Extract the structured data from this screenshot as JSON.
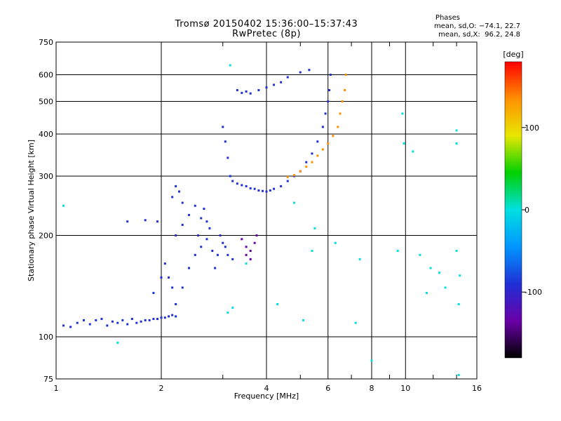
{
  "chart_data": {
    "type": "scatter",
    "title": "Tromsø 20150402 15:36:00–15:37:43",
    "subtitle": "RwPretec (8p)",
    "xlabel": "Frequency [MHz]",
    "ylabel": "Stationary phase Virtual Height [km]",
    "xscale": "log",
    "yscale": "log",
    "xlim": [
      1,
      16
    ],
    "ylim": [
      75,
      750
    ],
    "grid": true,
    "x_ticks": [
      1,
      2,
      4,
      6,
      8,
      10,
      16
    ],
    "y_ticks": [
      75,
      100,
      200,
      300,
      400,
      500,
      600,
      750
    ],
    "stats": {
      "title": "Phases",
      "o_mode": "mean, sd,O: −74.1, 22.7",
      "x_mode": "mean, sd,X:  96.2, 24.8"
    },
    "colorbar": {
      "label": "[deg]",
      "range": [
        -180,
        180
      ],
      "ticks": [
        100,
        0,
        -100
      ],
      "colormap": [
        "#000000",
        "#6a00a8",
        "#1f2fd6",
        "#0096ff",
        "#00e0e0",
        "#00d000",
        "#e8e800",
        "#ff9000",
        "#ff0000"
      ]
    },
    "series": [
      {
        "description": "o-mode trace (low)",
        "points": [
          [
            1.05,
            108
          ],
          [
            1.1,
            107
          ],
          [
            1.15,
            110
          ],
          [
            1.2,
            112
          ],
          [
            1.25,
            109
          ],
          [
            1.3,
            112
          ],
          [
            1.35,
            113
          ],
          [
            1.4,
            108
          ],
          [
            1.45,
            111
          ],
          [
            1.5,
            110
          ],
          [
            1.55,
            112
          ],
          [
            1.6,
            109
          ],
          [
            1.65,
            113
          ],
          [
            1.7,
            110
          ],
          [
            1.75,
            111
          ],
          [
            1.8,
            112
          ],
          [
            1.85,
            112
          ],
          [
            1.9,
            113
          ],
          [
            1.95,
            113
          ],
          [
            2.0,
            114
          ],
          [
            2.05,
            114
          ],
          [
            2.1,
            115
          ],
          [
            2.15,
            116
          ],
          [
            2.2,
            115
          ]
        ],
        "phase": -75
      },
      {
        "description": "E/F1 scatter",
        "points": [
          [
            1.9,
            135
          ],
          [
            2.0,
            150
          ],
          [
            2.05,
            165
          ],
          [
            2.1,
            150
          ],
          [
            2.15,
            140
          ],
          [
            2.2,
            125
          ],
          [
            2.3,
            140
          ],
          [
            2.4,
            160
          ],
          [
            2.5,
            175
          ],
          [
            2.6,
            185
          ],
          [
            2.7,
            195
          ],
          [
            2.75,
            210
          ],
          [
            2.8,
            180
          ],
          [
            2.85,
            160
          ],
          [
            2.9,
            175
          ],
          [
            2.95,
            200
          ],
          [
            3.0,
            190
          ],
          [
            3.05,
            185
          ],
          [
            3.1,
            175
          ],
          [
            3.2,
            170
          ],
          [
            2.55,
            200
          ],
          [
            2.6,
            225
          ],
          [
            2.65,
            240
          ],
          [
            2.7,
            220
          ],
          [
            2.2,
            200
          ],
          [
            2.3,
            215
          ],
          [
            2.4,
            230
          ],
          [
            2.5,
            245
          ],
          [
            2.15,
            260
          ],
          [
            2.2,
            280
          ],
          [
            2.25,
            270
          ],
          [
            2.3,
            250
          ],
          [
            1.95,
            220
          ],
          [
            1.8,
            222
          ],
          [
            1.6,
            220
          ]
        ],
        "phase": -70
      },
      {
        "description": "F2 o-mode trace",
        "points": [
          [
            3.0,
            420
          ],
          [
            3.05,
            380
          ],
          [
            3.1,
            340
          ],
          [
            3.15,
            300
          ],
          [
            3.2,
            290
          ],
          [
            3.3,
            285
          ],
          [
            3.4,
            282
          ],
          [
            3.5,
            280
          ],
          [
            3.6,
            276
          ],
          [
            3.7,
            275
          ],
          [
            3.8,
            272
          ],
          [
            3.9,
            271
          ],
          [
            4.0,
            270
          ],
          [
            4.1,
            272
          ],
          [
            4.2,
            275
          ],
          [
            4.4,
            280
          ],
          [
            4.6,
            290
          ],
          [
            4.8,
            300
          ],
          [
            5.0,
            310
          ],
          [
            5.2,
            330
          ],
          [
            5.4,
            350
          ],
          [
            5.6,
            380
          ],
          [
            5.8,
            420
          ],
          [
            5.9,
            460
          ],
          [
            6.0,
            500
          ],
          [
            6.05,
            540
          ],
          [
            6.1,
            600
          ]
        ],
        "phase": -110
      },
      {
        "description": "F2 x-mode trace",
        "points": [
          [
            4.6,
            298
          ],
          [
            4.8,
            302
          ],
          [
            5.0,
            310
          ],
          [
            5.2,
            320
          ],
          [
            5.4,
            330
          ],
          [
            5.6,
            345
          ],
          [
            5.8,
            360
          ],
          [
            6.0,
            375
          ],
          [
            6.2,
            395
          ],
          [
            6.4,
            420
          ],
          [
            6.5,
            460
          ],
          [
            6.6,
            500
          ],
          [
            6.7,
            540
          ],
          [
            6.75,
            600
          ]
        ],
        "phase": 120
      },
      {
        "description": "upper scatter",
        "points": [
          [
            3.3,
            540
          ],
          [
            3.4,
            530
          ],
          [
            3.5,
            535
          ],
          [
            3.6,
            528
          ],
          [
            3.8,
            540
          ],
          [
            4.0,
            550
          ],
          [
            4.2,
            560
          ],
          [
            4.4,
            570
          ],
          [
            4.6,
            590
          ],
          [
            5.0,
            610
          ],
          [
            5.3,
            620
          ]
        ],
        "phase": -90
      },
      {
        "description": "lower dense cluster",
        "points": [
          [
            3.4,
            195
          ],
          [
            3.5,
            185
          ],
          [
            3.6,
            180
          ],
          [
            3.7,
            190
          ],
          [
            3.75,
            200
          ],
          [
            3.6,
            170
          ],
          [
            3.5,
            175
          ]
        ],
        "phase": -130
      },
      {
        "description": "outliers",
        "points": [
          [
            1.05,
            245
          ],
          [
            1.5,
            96
          ],
          [
            3.1,
            118
          ],
          [
            3.2,
            122
          ],
          [
            3.15,
            640
          ],
          [
            3.5,
            165
          ],
          [
            4.3,
            125
          ],
          [
            4.8,
            250
          ],
          [
            5.1,
            112
          ],
          [
            5.4,
            180
          ],
          [
            5.5,
            210
          ],
          [
            6.3,
            190
          ],
          [
            7.2,
            110
          ],
          [
            7.4,
            170
          ],
          [
            8.0,
            85
          ],
          [
            9.5,
            180
          ],
          [
            9.8,
            460
          ],
          [
            9.9,
            375
          ],
          [
            10.5,
            355
          ],
          [
            11.0,
            175
          ],
          [
            11.5,
            135
          ],
          [
            11.8,
            160
          ],
          [
            12.5,
            155
          ],
          [
            13.0,
            140
          ],
          [
            14.0,
            410
          ],
          [
            14.0,
            375
          ],
          [
            14.0,
            180
          ],
          [
            14.2,
            125
          ],
          [
            14.3,
            152
          ],
          [
            14.2,
            77
          ]
        ],
        "phase": 0
      }
    ]
  }
}
